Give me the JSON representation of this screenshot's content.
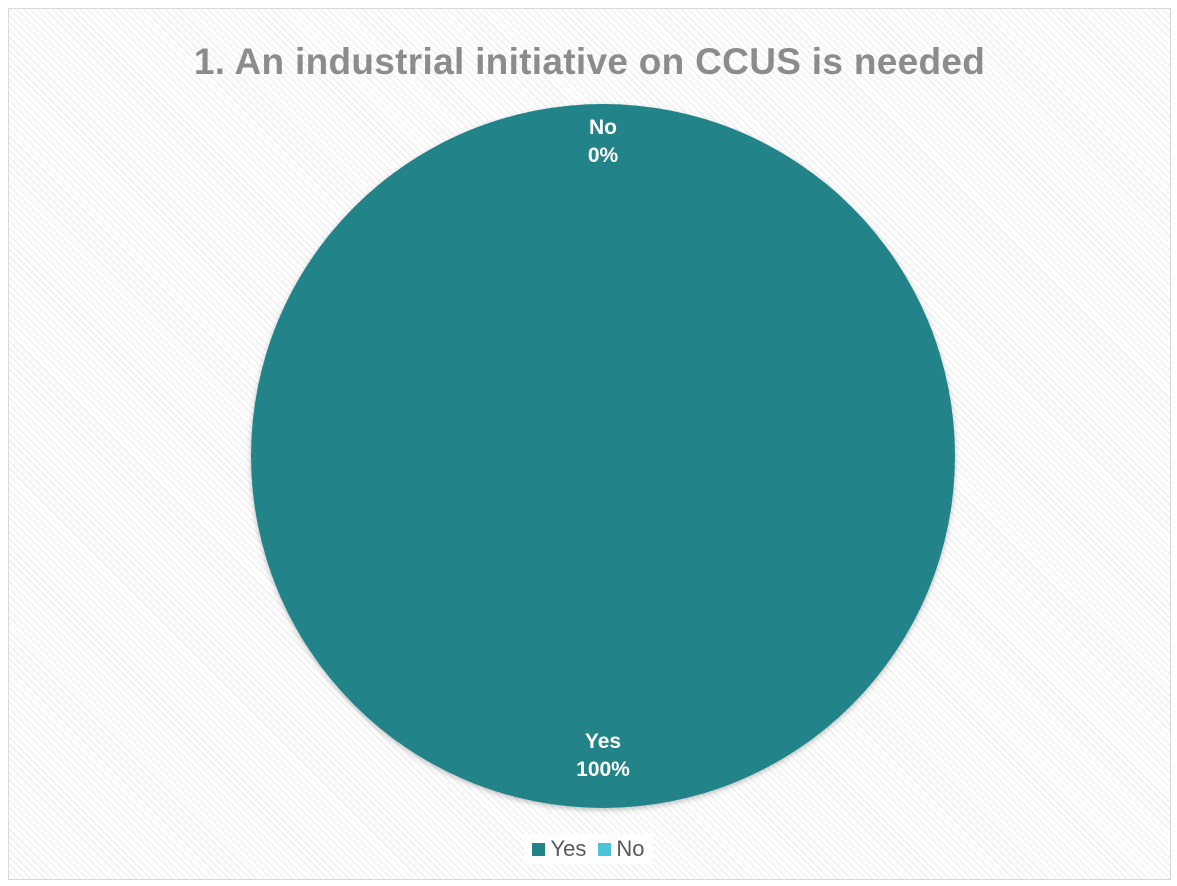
{
  "chart_data": {
    "type": "pie",
    "title": "1. An industrial initiative on CCUS is needed",
    "slices": [
      {
        "label": "Yes",
        "value": 100,
        "display": "100%",
        "color": "#208389"
      },
      {
        "label": "No",
        "value": 0,
        "display": "0%",
        "color": "#4BC4D8"
      }
    ],
    "legend": {
      "placement": "bottom",
      "entries": [
        "Yes",
        "No"
      ]
    }
  }
}
